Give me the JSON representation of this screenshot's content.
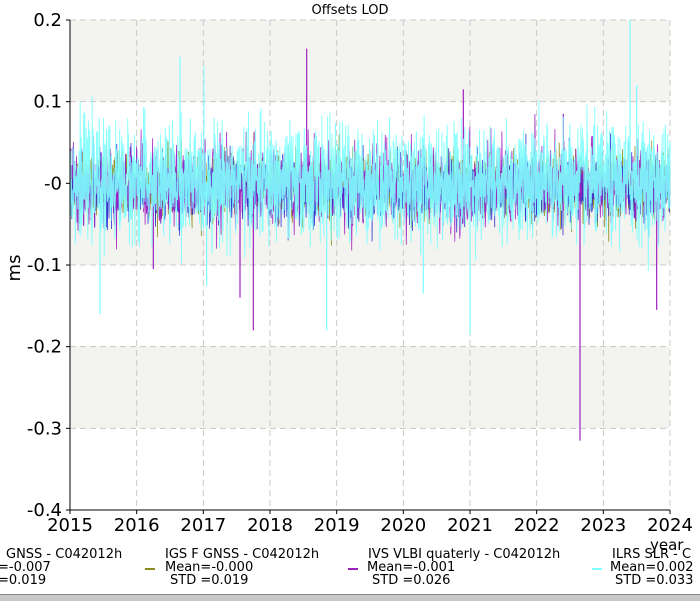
{
  "chart_data": {
    "type": "line",
    "title": "Offsets LOD",
    "ylabel": "ms",
    "xlabel": "year",
    "xlim": [
      2015,
      2024
    ],
    "ylim": [
      -0.4,
      0.2
    ],
    "x_ticks": [
      "2015",
      "2016",
      "2017",
      "2018",
      "2019",
      "2020",
      "2021",
      "2022",
      "2023",
      "2024"
    ],
    "y_ticks": [
      "0.2",
      "0.1",
      "-0",
      "-0.1",
      "-0.2",
      "-0.3",
      "-0.4"
    ],
    "grid": true,
    "legend_position": "bottom",
    "series": [
      {
        "name": "GNSS - C042012h",
        "color": "#2d2dcc",
        "mean": "=-0.007",
        "std": "=0.019",
        "approx_mean": -0.007,
        "approx_std": 0.019
      },
      {
        "name": "IGS F GNSS - C042012h",
        "color": "#8a8a1e",
        "mean": "Mean=-0.000",
        "std": "STD =0.019",
        "approx_mean": 0.0,
        "approx_std": 0.019
      },
      {
        "name": "IVS VLBI quaterly - C042012h",
        "color": "#a020c0",
        "mean": "Mean=-0.001",
        "std": "STD =0.026",
        "approx_mean": -0.001,
        "approx_std": 0.026,
        "spikes": [
          {
            "x": 2018.55,
            "y": 0.165
          },
          {
            "x": 2022.65,
            "y": -0.315
          },
          {
            "x": 2017.75,
            "y": -0.18
          },
          {
            "x": 2016.25,
            "y": -0.105
          },
          {
            "x": 2017.55,
            "y": -0.14
          },
          {
            "x": 2023.8,
            "y": -0.155
          },
          {
            "x": 2020.9,
            "y": 0.115
          },
          {
            "x": 2022.4,
            "y": 0.085
          }
        ]
      },
      {
        "name": "ILRS SLR - C",
        "color": "#80ffff",
        "mean": "Mean=0.002",
        "std": "STD =0.033",
        "approx_mean": 0.002,
        "approx_std": 0.033,
        "spikes": [
          {
            "x": 2016.65,
            "y": 0.155
          },
          {
            "x": 2015.45,
            "y": -0.16
          },
          {
            "x": 2018.85,
            "y": -0.18
          },
          {
            "x": 2023.4,
            "y": 0.2
          },
          {
            "x": 2021.0,
            "y": -0.185
          },
          {
            "x": 2017.05,
            "y": -0.125
          },
          {
            "x": 2020.3,
            "y": -0.135
          },
          {
            "x": 2023.5,
            "y": 0.12
          }
        ]
      }
    ]
  }
}
